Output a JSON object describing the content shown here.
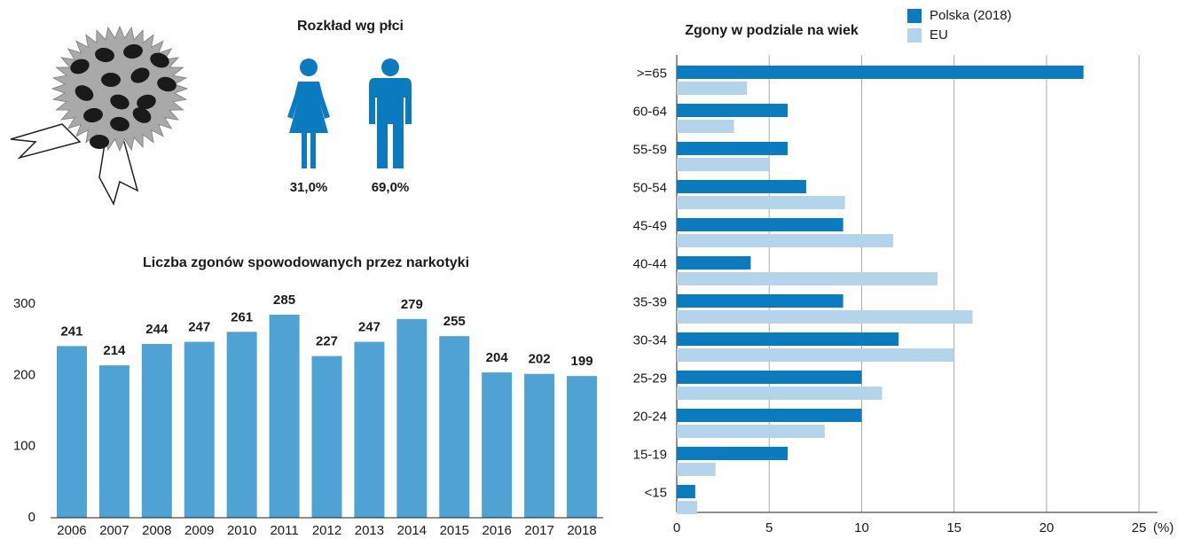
{
  "chart_data": [
    {
      "type": "pictogram",
      "title": "Rozkład wg płci",
      "values": [
        31.0,
        69.0
      ],
      "value_labels": [
        "31,0%",
        "69,0%"
      ],
      "color": "#0a7bbf"
    },
    {
      "type": "bar",
      "title": "Liczba zgonów spowodowanych przez narkotyki",
      "categories": [
        "2006",
        "2007",
        "2008",
        "2009",
        "2010",
        "2011",
        "2012",
        "2013",
        "2014",
        "2015",
        "2016",
        "2017",
        "2018"
      ],
      "values": [
        241,
        214,
        244,
        247,
        261,
        285,
        227,
        247,
        279,
        255,
        204,
        202,
        199
      ],
      "color": "#4fa3d4",
      "ylim": [
        0,
        300
      ],
      "yticks": [
        0,
        100,
        200,
        300
      ]
    },
    {
      "type": "hbar",
      "title": "Zgony w podziale na wiek",
      "x_label": "(%)",
      "categories": [
        ">=65",
        "60-64",
        "55-59",
        "50-54",
        "45-49",
        "40-44",
        "35-39",
        "30-34",
        "25-29",
        "20-24",
        "15-19",
        "<15"
      ],
      "series": [
        {
          "name": "Polska (2018)",
          "color": "#0a7bbf",
          "values": [
            22,
            6,
            6,
            7,
            9,
            4,
            9,
            12,
            10,
            10,
            6,
            1
          ]
        },
        {
          "name": "EU",
          "color": "#b3d4ea",
          "values": [
            3.8,
            3.1,
            5.0,
            9.1,
            11.7,
            14.1,
            16.0,
            15.0,
            11.1,
            8.0,
            2.1,
            1.1
          ]
        }
      ],
      "xlim": [
        0,
        26
      ],
      "xticks": [
        0,
        5,
        10,
        15,
        20,
        25
      ],
      "grid": true,
      "legend": "top-right"
    }
  ]
}
